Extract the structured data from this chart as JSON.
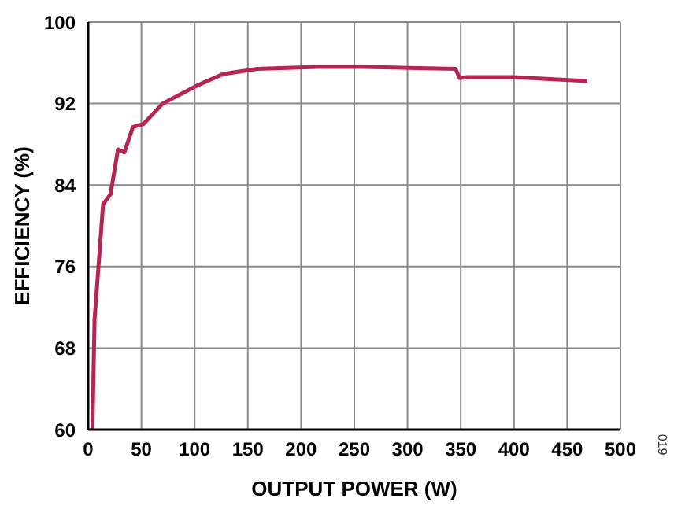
{
  "chart_data": {
    "type": "line",
    "xlabel": "OUTPUT POWER (W)",
    "ylabel": "EFFICIENCY (%)",
    "annotations": [
      "019"
    ],
    "x": [
      4,
      6,
      14,
      21,
      28,
      34,
      42,
      52,
      70,
      103,
      127,
      159,
      215,
      258,
      345,
      349,
      356,
      399,
      469
    ],
    "series": [
      {
        "color": "#b5254f",
        "values": [
          60,
          70.8,
          82.1,
          83.1,
          87.5,
          87.2,
          89.7,
          90.0,
          92.0,
          93.8,
          94.9,
          95.4,
          95.6,
          95.6,
          95.4,
          94.5,
          94.6,
          94.6,
          94.2
        ]
      }
    ],
    "xlim": [
      0,
      500
    ],
    "xticks": [
      0,
      50,
      100,
      150,
      200,
      250,
      300,
      350,
      400,
      450,
      500
    ],
    "ylim": [
      60,
      100
    ],
    "yticks": [
      60,
      68,
      76,
      84,
      92,
      100
    ],
    "grid": true,
    "legend": false,
    "marker": "none",
    "line_style": "solid"
  }
}
